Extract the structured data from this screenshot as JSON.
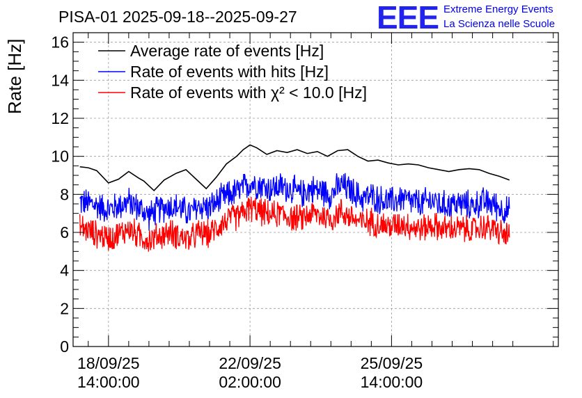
{
  "chart_data": {
    "type": "line",
    "title": "PISA-01 2025-09-18--2025-09-27",
    "ylabel": "Rate [Hz]",
    "xlabel": "",
    "ylim": [
      0,
      16.5
    ],
    "yticks": [
      0,
      2,
      4,
      6,
      8,
      10,
      12,
      14,
      16
    ],
    "xlim_hours": [
      -21,
      267
    ],
    "x_unit": "hours since 18/09/25 14:00:00",
    "xticks": [
      {
        "hours": 0,
        "date": "18/09/25",
        "time": "14:00:00"
      },
      {
        "hours": 84,
        "date": "22/09/25",
        "time": "02:00:00"
      },
      {
        "hours": 168,
        "date": "25/09/25",
        "time": "14:00:00"
      }
    ],
    "grid": true,
    "legend_position": "top-left",
    "series": [
      {
        "name": "Average rate of events [Hz]",
        "color": "#000000",
        "x": [
          -17,
          -12,
          -7,
          0,
          6,
          12,
          18,
          21,
          27,
          33,
          40,
          46,
          52,
          58,
          64,
          70,
          76,
          80,
          84,
          88,
          94,
          100,
          106,
          112,
          118,
          124,
          130,
          136,
          142,
          148,
          154,
          160,
          166,
          172,
          178,
          184,
          190,
          196,
          202,
          208,
          214,
          220,
          226,
          232,
          238
        ],
        "values": [
          9.45,
          9.4,
          9.25,
          8.6,
          8.8,
          9.2,
          8.85,
          8.7,
          8.2,
          8.75,
          9.1,
          9.3,
          8.8,
          8.3,
          8.9,
          9.6,
          10.0,
          10.35,
          10.6,
          10.45,
          10.1,
          10.3,
          10.2,
          10.35,
          10.15,
          10.25,
          10.0,
          10.3,
          10.35,
          10.0,
          9.75,
          9.8,
          9.65,
          9.55,
          9.6,
          9.55,
          9.4,
          9.3,
          9.2,
          9.3,
          9.35,
          9.3,
          9.1,
          8.95,
          8.75
        ]
      },
      {
        "name": "Rate of events with hits [Hz]",
        "color": "#0000ff",
        "x": [
          -17,
          -10,
          -3,
          0,
          6,
          12,
          18,
          24,
          30,
          36,
          42,
          48,
          54,
          60,
          66,
          72,
          78,
          84,
          90,
          96,
          102,
          108,
          114,
          120,
          126,
          132,
          138,
          144,
          150,
          156,
          162,
          168,
          174,
          180,
          186,
          192,
          198,
          204,
          210,
          216,
          222,
          228,
          234,
          238
        ],
        "values": [
          7.6,
          7.5,
          7.3,
          7.2,
          7.4,
          7.6,
          7.3,
          6.9,
          7.2,
          7.4,
          7.3,
          7.0,
          7.4,
          7.3,
          7.7,
          8.0,
          8.2,
          8.6,
          8.5,
          8.3,
          8.4,
          8.3,
          8.0,
          8.3,
          8.2,
          8.0,
          8.5,
          8.2,
          7.8,
          7.9,
          7.7,
          7.6,
          7.8,
          7.6,
          7.5,
          7.7,
          7.4,
          7.5,
          7.5,
          7.4,
          7.6,
          7.5,
          7.2,
          7.1
        ],
        "noise_amplitude": 0.9
      },
      {
        "name": "Rate of events with χ² < 10.0 [Hz]",
        "color": "#ff0000",
        "x": [
          -17,
          -10,
          -3,
          0,
          6,
          12,
          18,
          24,
          30,
          36,
          42,
          48,
          54,
          60,
          66,
          72,
          78,
          84,
          90,
          96,
          102,
          108,
          114,
          120,
          126,
          132,
          138,
          144,
          150,
          156,
          162,
          168,
          174,
          180,
          186,
          192,
          198,
          204,
          210,
          216,
          222,
          228,
          234,
          238
        ],
        "values": [
          6.3,
          6.0,
          5.8,
          5.7,
          5.9,
          6.2,
          5.8,
          5.6,
          5.8,
          6.0,
          5.8,
          5.6,
          6.0,
          5.9,
          6.4,
          6.7,
          6.9,
          7.3,
          7.1,
          6.9,
          7.0,
          6.8,
          6.7,
          7.0,
          6.9,
          6.7,
          7.1,
          6.8,
          6.5,
          6.6,
          6.4,
          6.3,
          6.5,
          6.3,
          6.2,
          6.4,
          6.2,
          6.2,
          6.2,
          6.1,
          6.3,
          6.2,
          5.9,
          5.8
        ],
        "noise_amplitude": 0.85
      }
    ]
  },
  "logo": {
    "mark": "EEE",
    "line1": "Extreme Energy Events",
    "line2": "La Scienza nelle Scuole"
  }
}
